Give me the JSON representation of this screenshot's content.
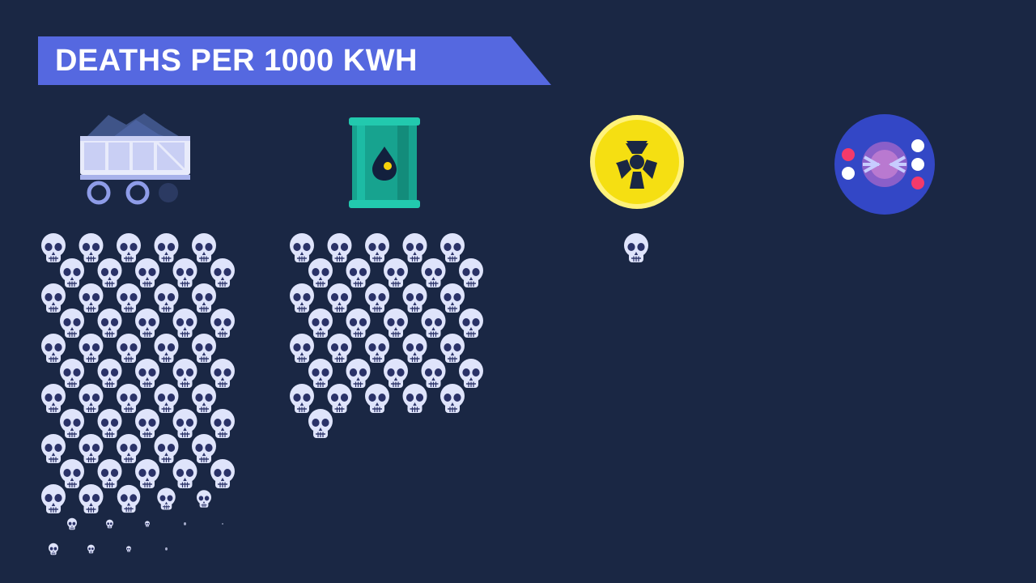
{
  "title": "DEATHS PER 1000 KWH",
  "colors": {
    "background": "#1a2744",
    "banner": "#5568e0",
    "skull": "#dfe4fb",
    "skull_dark": "#2a3268"
  },
  "sources": [
    {
      "name": "coal",
      "icon": "coal-cart-icon",
      "skulls": 64
    },
    {
      "name": "oil",
      "icon": "oil-barrel-icon",
      "skulls": 36
    },
    {
      "name": "nuclear",
      "icon": "radiation-icon",
      "skulls": 1
    },
    {
      "name": "fusion",
      "icon": "fusion-icon",
      "skulls": 0
    }
  ]
}
